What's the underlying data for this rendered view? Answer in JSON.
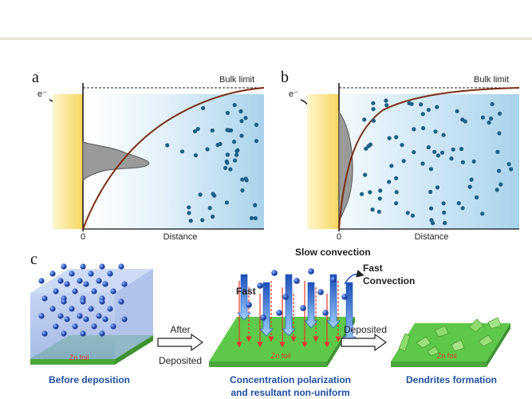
{
  "colors": {
    "top_rule": "#e9e3cf",
    "electrode": "#f6d55c",
    "gradient_start": "#ffffff",
    "gradient_end": "#a9d3ec",
    "ion": "#1d5f85",
    "curve": "#7a2e12",
    "zn_green": "#6fd14e",
    "zn_text": "#e03a2a",
    "caption_blue": "#1f4fa0"
  },
  "panel_a": {
    "letter": "a",
    "electron_label": "e⁻",
    "bulk_limit": "Bulk limit",
    "x_origin": "0",
    "x_label": "Distance"
  },
  "panel_b": {
    "letter": "b",
    "electron_label": "e⁻",
    "bulk_limit": "Bulk limit",
    "x_origin": "0",
    "x_label": "Distance"
  },
  "panel_c": {
    "letter": "c",
    "zn_foil": "Zn foil",
    "caption_before": "Before deposition",
    "arrow1_top": "After",
    "arrow1_bottom": "Deposited",
    "caption_middle_1": "Concentration polarization",
    "caption_middle_2": "and  resultant non-uniform",
    "slow_convection": "Slow convection",
    "fast_label": "Fast",
    "fast_convection_1": "Fast",
    "fast_convection_2": "Convection",
    "arrow2_top": "Deposited",
    "caption_right": "Dendrites formation"
  }
}
